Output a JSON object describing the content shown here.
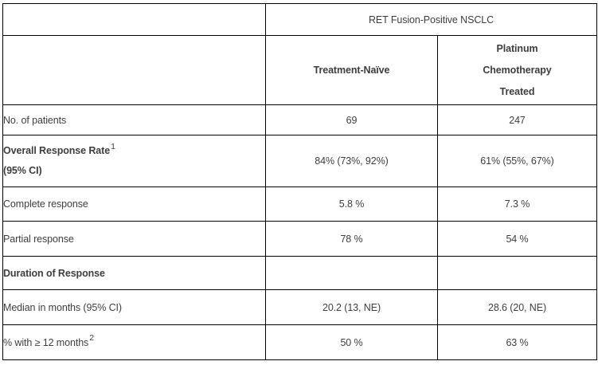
{
  "page": {
    "background_color": "#ffffff",
    "text_color": "#3d3d3d",
    "border_color": "#000000"
  },
  "table": {
    "header": {
      "group_label": "RET Fusion-Positive NSCLC",
      "column_treatment_naive": "Treatment-Naïve",
      "column_platinum_line1": "Platinum",
      "column_platinum_line2": "Chemotherapy",
      "column_platinum_line3": "Treated"
    },
    "rows": [
      {
        "label": "No. of patients",
        "treatment_naive": "69",
        "platinum": "247"
      },
      {
        "label": "Overall Response Rate",
        "label_sup": "1",
        "label_line2": "(95% CI)",
        "treatment_naive": "84% (73%, 92%)",
        "platinum": "61% (55%, 67%)"
      },
      {
        "label": "Complete response",
        "treatment_naive": "5.8 %",
        "platinum": "7.3 %"
      },
      {
        "label": "Partial response",
        "treatment_naive": "78 %",
        "platinum": "54 %"
      },
      {
        "label": "Duration of Response",
        "treatment_naive": "",
        "platinum": ""
      },
      {
        "label": "Median in months (95% CI)",
        "treatment_naive": "20.2 (13, NE)",
        "platinum": "28.6 (20, NE)"
      },
      {
        "label": "% with ≥ 12 months",
        "label_sup": "2",
        "treatment_naive": "50 %",
        "platinum": "63 %"
      }
    ]
  }
}
